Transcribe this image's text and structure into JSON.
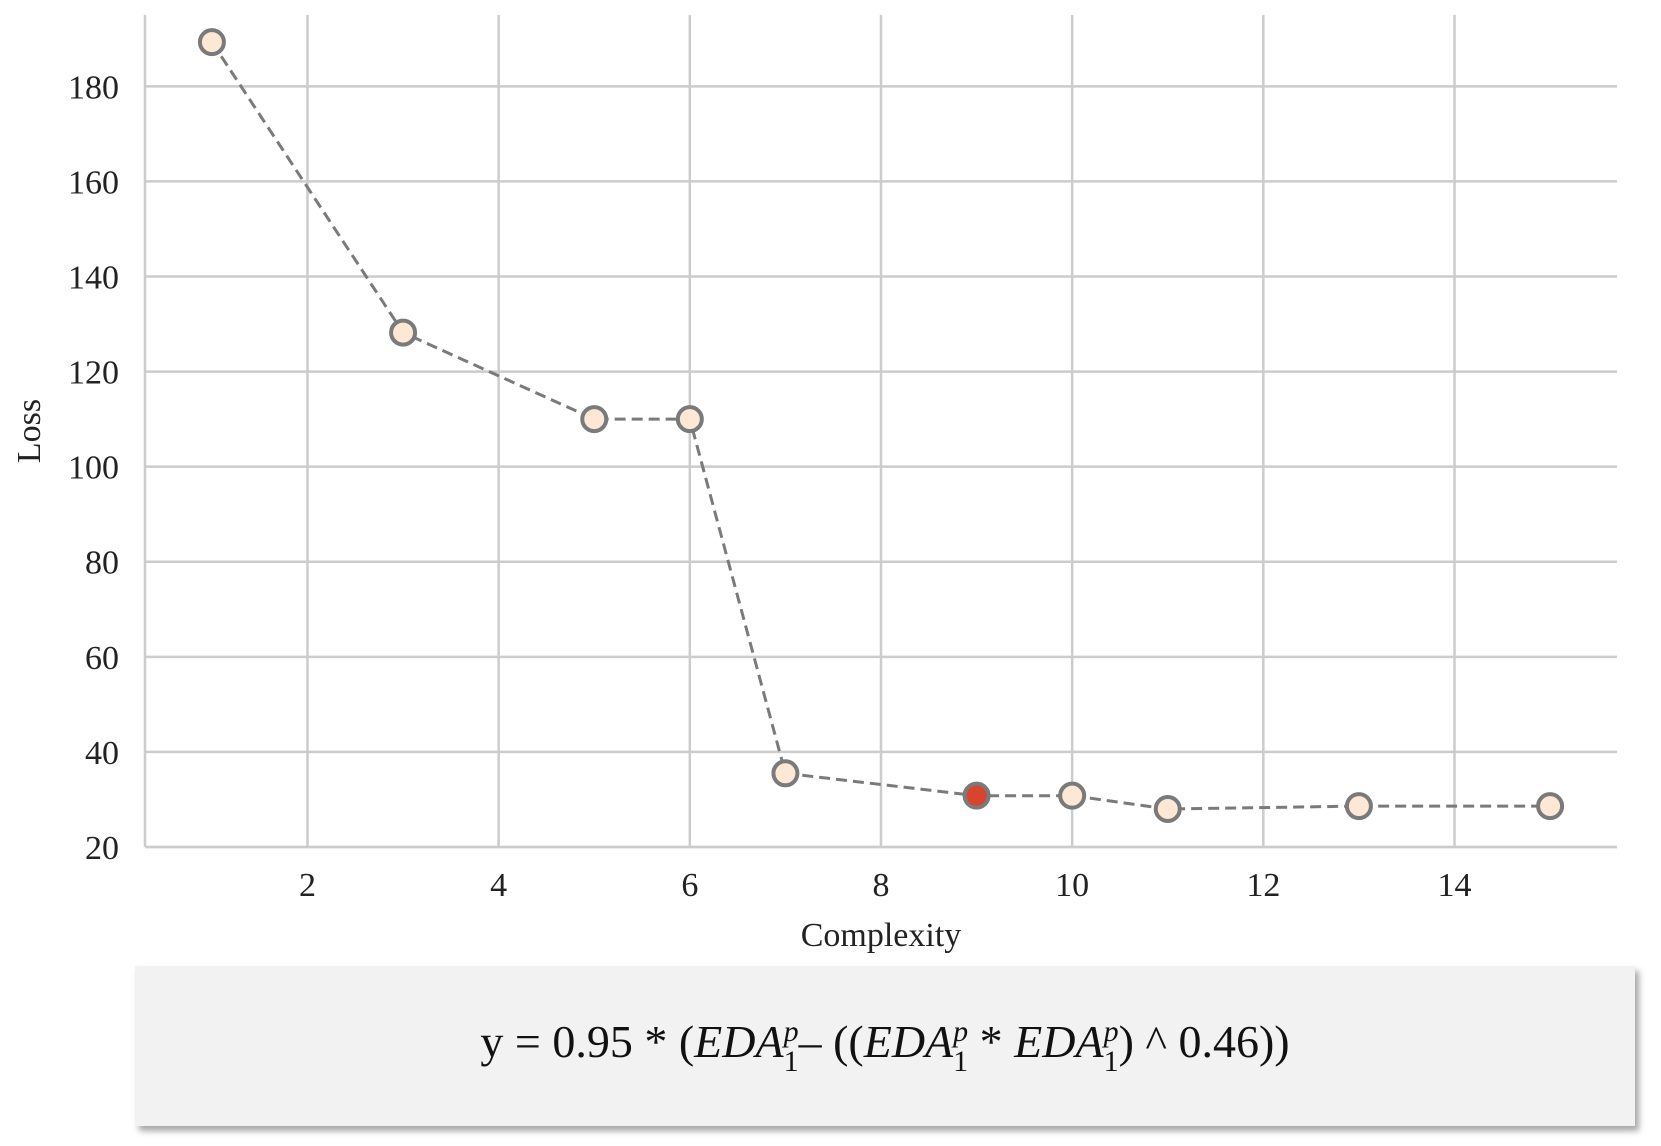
{
  "chart_data": {
    "type": "line",
    "xlabel": "Complexity",
    "ylabel": "Loss",
    "xlim": [
      0.3,
      15.7
    ],
    "ylim": [
      20,
      195
    ],
    "xticks": [
      2,
      4,
      6,
      8,
      10,
      12,
      14
    ],
    "yticks": [
      20,
      40,
      60,
      80,
      100,
      120,
      140,
      160,
      180
    ],
    "grid": true,
    "series": [
      {
        "x": [
          1,
          3,
          5,
          6,
          7,
          9,
          10,
          11,
          13,
          15
        ],
        "y": [
          189.3,
          128.2,
          110.0,
          110.0,
          35.5,
          30.8,
          30.8,
          28.0,
          28.6,
          28.6
        ],
        "marker_fill": "#fde8d6",
        "marker_edge": "#7a7a7a",
        "line_color": "#7a7a7a",
        "line_style": "dashed"
      }
    ],
    "highlight": {
      "x": 9,
      "y": 30.8,
      "color": "#d9442e"
    }
  },
  "formula": {
    "prefix": "y = 0.95 * (",
    "var": "EDA",
    "sup": "p",
    "sub": "1",
    "op_minus": "– ((",
    "op_times": " * ",
    "suffix": ") ^ 0.46))"
  },
  "colors": {
    "grid": "#cccccc",
    "formula_bg": "#f2f2f2"
  }
}
